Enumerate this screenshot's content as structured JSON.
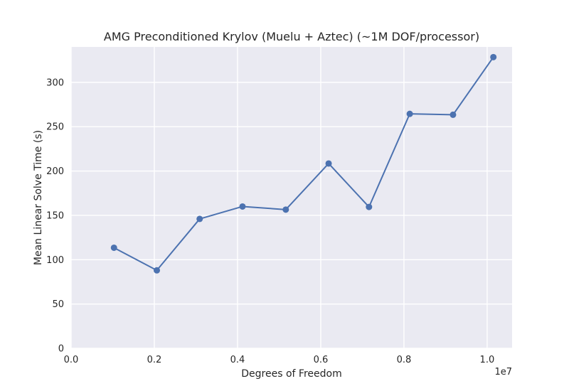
{
  "chart_data": {
    "type": "line",
    "title": "AMG Preconditioned Krylov (Muelu + Aztec) (~1M DOF/processor)",
    "xlabel": "Degrees of Freedom",
    "ylabel": "Mean Linear Solve Time (s)",
    "x_offset_label": "1e7",
    "xlim": [
      0,
      1.06
    ],
    "ylim": [
      0,
      340
    ],
    "xticks": [
      0.0,
      0.2,
      0.4,
      0.6,
      0.8,
      1.0
    ],
    "xtick_labels": [
      "0.0",
      "0.2",
      "0.4",
      "0.6",
      "0.8",
      "1.0"
    ],
    "yticks": [
      0,
      50,
      100,
      150,
      200,
      250,
      300
    ],
    "ytick_labels": [
      "0",
      "50",
      "100",
      "150",
      "200",
      "250",
      "300"
    ],
    "grid": true,
    "series": [
      {
        "color": "#4c72b0",
        "x": [
          0.103,
          0.206,
          0.309,
          0.412,
          0.516,
          0.619,
          0.716,
          0.814,
          0.918,
          1.015
        ],
        "y": [
          113.5,
          88,
          146,
          160,
          156.5,
          208.5,
          159.5,
          264.5,
          263.5,
          328.5
        ]
      }
    ],
    "plot_background": "#eaeaf2",
    "grid_color": "#ffffff"
  }
}
